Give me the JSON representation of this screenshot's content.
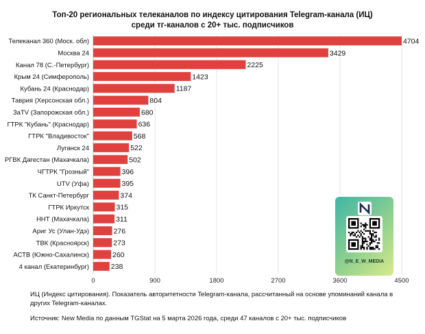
{
  "chart_data": {
    "type": "bar",
    "orientation": "horizontal",
    "title": "Топ-20 региональных телеканалов по индексу цитирования Telegram-канала (ИЦ)",
    "subtitle": "среди тг-каналов с 20+ тыс. подписчиков",
    "categories": [
      "Телеканал 360 (Моск. обл)",
      "Москва 24",
      "Канал 78 (С.-Петербург)",
      "Крым 24 (Симферополь)",
      "Кубань 24 (Краснодар)",
      "Таврия (Херсонская обл.)",
      "ЗаTV (Запорожская обл.)",
      "ГТРК \"Кубань\" (Краснодар)",
      "ГТРК \"Владивосток\"",
      "Луганск 24",
      "РГВК Дагестан (Махачкала)",
      "ЧГТРК \"Грозный\"",
      "UTV (Уфа)",
      "ТК Санкт-Петербург",
      "ГТРК Иркутск",
      "ННТ (Махачкала)",
      "Ариг Ус (Улан-Удэ)",
      "ТВК (Красноярск)",
      "АСТВ (Южно-Сахалинск)",
      "4 канал (Екатеринбург)"
    ],
    "values": [
      4704,
      3429,
      2225,
      1423,
      1187,
      804,
      680,
      636,
      568,
      522,
      502,
      396,
      395,
      374,
      315,
      311,
      276,
      273,
      260,
      238
    ],
    "xticks": [
      "0",
      "900",
      "1800",
      "2700",
      "3600",
      "4500"
    ],
    "xlim": [
      0,
      4500
    ],
    "bar_color": "#e0413e",
    "grid": true
  },
  "notes": {
    "definition": "ИЦ (Индекс цитирования). Показатель авторитетности Telegram-канала, рассчитанный на основе упоминаний канала в других Telegram-каналах.",
    "source": "Источник: New Media по данным TGStat на 5 марта 2026 года, среди 47 каналов с 20+ тыс. подписчиков"
  },
  "promo": {
    "handle": "@N_E_W_MEDIA",
    "logo_icon": "new-media-logo-icon",
    "qr_icon": "qr-code-icon"
  }
}
